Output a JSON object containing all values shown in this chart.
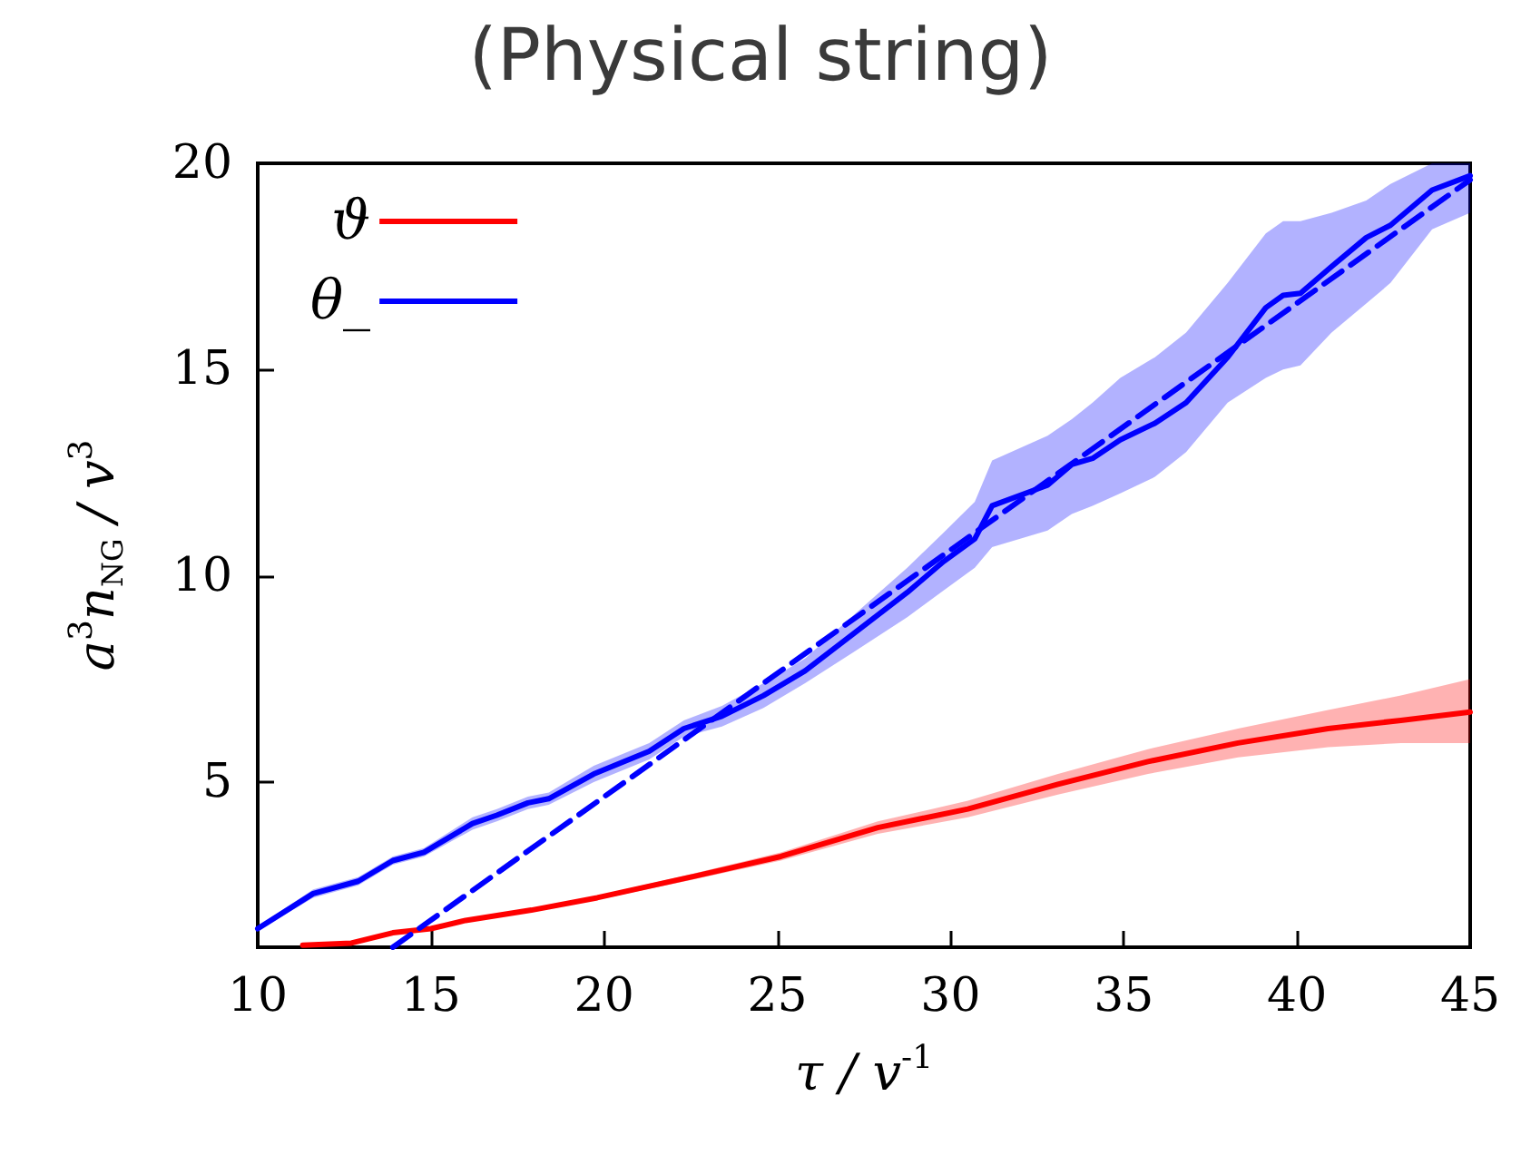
{
  "chart_data": {
    "type": "line",
    "title": "(Physical string)",
    "xlabel": "τ / v$^{-1}$",
    "ylabel": "a$^{3}$n$_{NG}$ / v$^{3}$",
    "xlim": [
      10,
      45
    ],
    "xticks": [
      10,
      15,
      20,
      25,
      30,
      35,
      40,
      45
    ],
    "ylim": [
      1,
      20
    ],
    "yticks": [
      5,
      10,
      15,
      20
    ],
    "legend": "top left",
    "line_style": "solid",
    "series": [
      {
        "name": "ϑ",
        "color": "#ff0000",
        "x": [
          11.3,
          12.7,
          13.9,
          15.0,
          16.0,
          17.9,
          19.8,
          22.5,
          25.1,
          27.9,
          30.5,
          33.1,
          35.7,
          38.3,
          40.9,
          43.0,
          45.0
        ],
        "values": [
          1.05,
          1.1,
          1.35,
          1.45,
          1.65,
          1.9,
          2.2,
          2.7,
          3.2,
          3.9,
          4.35,
          4.95,
          5.5,
          5.95,
          6.3,
          6.5,
          6.7
        ],
        "lower": [
          1.0,
          1.05,
          1.3,
          1.4,
          1.6,
          1.85,
          2.15,
          2.63,
          3.1,
          3.75,
          4.15,
          4.7,
          5.2,
          5.6,
          5.85,
          5.95,
          5.95
        ],
        "upper": [
          1.1,
          1.15,
          1.4,
          1.5,
          1.7,
          1.95,
          2.25,
          2.77,
          3.3,
          4.05,
          4.55,
          5.2,
          5.8,
          6.3,
          6.75,
          7.1,
          7.5
        ]
      },
      {
        "name": "θ_",
        "color": "#0000ff",
        "x": [
          10.0,
          11.6,
          12.9,
          13.9,
          14.8,
          16.2,
          16.9,
          17.8,
          18.4,
          19.7,
          21.3,
          22.3,
          23.4,
          24.6,
          25.8,
          27.2,
          28.75,
          29.8,
          30.7,
          31.2,
          32.8,
          33.5,
          34.1,
          34.9,
          35.9,
          36.8,
          38.0,
          39.1,
          39.6,
          40.1,
          41.0,
          42.0,
          42.7,
          43.9,
          45.0
        ],
        "values": [
          1.45,
          2.3,
          2.6,
          3.1,
          3.3,
          4.0,
          4.2,
          4.5,
          4.6,
          5.2,
          5.75,
          6.3,
          6.6,
          7.1,
          7.7,
          8.6,
          9.6,
          10.35,
          10.9,
          11.7,
          12.2,
          12.7,
          12.85,
          13.3,
          13.7,
          14.2,
          15.3,
          16.5,
          16.8,
          16.85,
          17.5,
          18.2,
          18.5,
          19.35,
          19.7
        ],
        "lower": [
          1.4,
          2.2,
          2.5,
          3.0,
          3.2,
          3.85,
          4.05,
          4.35,
          4.45,
          5.0,
          5.55,
          6.1,
          6.35,
          6.8,
          7.4,
          8.15,
          9.0,
          9.65,
          10.2,
          10.7,
          11.1,
          11.5,
          11.7,
          12.0,
          12.4,
          13.0,
          14.2,
          14.8,
          15.0,
          15.1,
          15.9,
          16.6,
          17.1,
          18.4,
          18.8
        ],
        "upper": [
          1.5,
          2.4,
          2.7,
          3.2,
          3.4,
          4.15,
          4.35,
          4.65,
          4.75,
          5.4,
          5.95,
          6.5,
          6.85,
          7.4,
          8.0,
          9.05,
          10.2,
          11.05,
          11.8,
          12.8,
          13.4,
          13.8,
          14.2,
          14.8,
          15.3,
          15.9,
          17.1,
          18.3,
          18.6,
          18.6,
          18.8,
          19.1,
          19.5,
          20,
          20
        ]
      },
      {
        "type": "line",
        "color": "#0000ff",
        "line_style": "dashed",
        "x": [
          13.9,
          45.0
        ],
        "values": [
          1.0,
          19.6
        ]
      }
    ]
  }
}
